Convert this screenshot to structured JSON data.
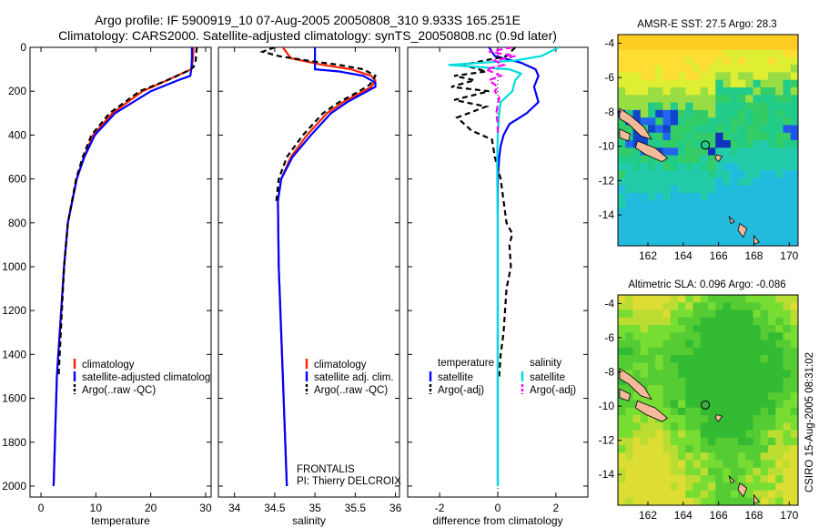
{
  "header": {
    "line1": "Argo profile: IF 5900919_10 07-Aug-2005 20050808_310 9.933S 165.251E",
    "line2": "Climatology: CARS2000. Satellite-adjusted climatology: synTS_20050808.nc (0.9d later)"
  },
  "side_label": "CSIRO 15-Aug-2005 08:31:02",
  "colors": {
    "climatology": "#ff2200",
    "satellite": "#0000ff",
    "argo": "#000000",
    "salinity_satellite": "#00dddd",
    "salinity_argo": "#ff00ff",
    "land": "#f4b89a"
  },
  "chart_data": [
    {
      "type": "line",
      "id": "temperature",
      "xlabel": "temperature",
      "ylabel": "",
      "xlim": [
        -2,
        31
      ],
      "ylim": [
        2050,
        0
      ],
      "xticks": [
        0,
        10,
        20,
        30
      ],
      "yticks": [
        0,
        200,
        400,
        600,
        800,
        1000,
        1200,
        1400,
        1600,
        1800,
        2000
      ],
      "legend": [
        "climatology",
        "satellite-adjusted climatology",
        "Argo(..raw -QC)"
      ],
      "legend_position": "lower-right",
      "series": [
        {
          "name": "climatology",
          "color": "#ff2200",
          "dash": "",
          "depth": [
            0,
            50,
            100,
            110,
            150,
            200,
            300,
            400,
            500,
            600,
            800,
            1000,
            1500,
            2000
          ],
          "value": [
            27.8,
            27.7,
            27.4,
            26.5,
            23,
            18.5,
            13,
            9.5,
            7.8,
            6.5,
            4.9,
            4.2,
            2.9,
            2.3
          ]
        },
        {
          "name": "satellite-adjusted climatology",
          "color": "#0000ff",
          "dash": "",
          "depth": [
            0,
            50,
            100,
            130,
            150,
            200,
            300,
            400,
            500,
            600,
            800,
            1000,
            1500,
            2000
          ],
          "value": [
            27.5,
            27.5,
            27.4,
            27.2,
            25,
            20,
            13.5,
            9.8,
            7.9,
            6.5,
            4.9,
            4.2,
            2.9,
            2.3
          ]
        },
        {
          "name": "Argo(..raw -QC)",
          "color": "#000000",
          "dash": "6,4",
          "depth": [
            0,
            20,
            60,
            90,
            110,
            150,
            200,
            300,
            400,
            500,
            600,
            800,
            1000,
            1200,
            1400,
            1500
          ],
          "value": [
            28.4,
            28.3,
            28.2,
            27.8,
            26.5,
            23,
            18,
            12.5,
            9.2,
            7.6,
            6.4,
            4.9,
            4.2,
            3.8,
            3.4,
            3.2
          ]
        }
      ]
    },
    {
      "type": "line",
      "id": "salinity",
      "xlabel": "salinity",
      "ylabel": "",
      "xlim": [
        33.8,
        36.05
      ],
      "ylim": [
        2050,
        0
      ],
      "xticks": [
        34,
        34.5,
        35,
        35.5,
        36
      ],
      "legend": [
        "climatology",
        "satellite adj. clim.",
        "Argo(..raw -QC)"
      ],
      "legend_position": "lower-right",
      "series": [
        {
          "name": "climatology",
          "color": "#ff2200",
          "dash": "",
          "depth": [
            0,
            50,
            80,
            100,
            130,
            150,
            180,
            200,
            250,
            300,
            400,
            500,
            600,
            700,
            1000,
            1500,
            2000
          ],
          "value": [
            34.6,
            34.7,
            35.1,
            35.45,
            35.7,
            35.75,
            35.7,
            35.6,
            35.35,
            35.15,
            34.9,
            34.7,
            34.58,
            34.54,
            34.55,
            34.6,
            34.65
          ]
        },
        {
          "name": "satellite adj. clim.",
          "color": "#0000ff",
          "dash": "",
          "depth": [
            0,
            100,
            110,
            130,
            160,
            180,
            200,
            250,
            300,
            400,
            500,
            600,
            700,
            1000,
            1500,
            2000
          ],
          "value": [
            35.0,
            35.0,
            35.3,
            35.6,
            35.75,
            35.75,
            35.65,
            35.4,
            35.2,
            34.95,
            34.72,
            34.58,
            34.54,
            34.55,
            34.6,
            34.65
          ]
        },
        {
          "name": "Argo(..raw -QC)",
          "color": "#000000",
          "dash": "6,4",
          "depth": [
            0,
            20,
            40,
            60,
            80,
            100,
            130,
            150,
            170,
            200,
            250,
            300,
            400,
            500,
            600,
            700
          ],
          "value": [
            34.5,
            34.35,
            34.55,
            34.9,
            35.3,
            35.6,
            35.75,
            35.72,
            35.68,
            35.55,
            35.3,
            35.1,
            34.85,
            34.65,
            34.55,
            34.52
          ]
        }
      ]
    },
    {
      "type": "line",
      "id": "difference",
      "xlabel": "difference from climatology",
      "ylabel": "",
      "xlim": [
        -3.1,
        3.1
      ],
      "ylim": [
        2050,
        0
      ],
      "xticks": [
        -2,
        0,
        2
      ],
      "legend_groups": [
        {
          "title": "temperature",
          "items": [
            "satellite",
            "Argo(-adj)"
          ]
        },
        {
          "title": "salinity",
          "items": [
            "satellite",
            "Argo(-adj)"
          ]
        }
      ],
      "series": [
        {
          "name": "temperature satellite",
          "color": "#0000ff",
          "dash": "",
          "depth": [
            0,
            40,
            70,
            100,
            130,
            180,
            250,
            300,
            350,
            400,
            450,
            500,
            600,
            800,
            2000
          ],
          "value": [
            -0.3,
            -0.1,
            0.8,
            1.3,
            1.4,
            1.25,
            1.4,
            1.0,
            0.4,
            0.2,
            0.1,
            0.05,
            0,
            0,
            0
          ]
        },
        {
          "name": "temperature Argo(-adj)",
          "color": "#000000",
          "dash": "6,4",
          "depth": [
            0,
            40,
            80,
            110,
            130,
            150,
            180,
            200,
            240,
            270,
            320,
            380,
            420,
            500,
            600,
            800,
            850,
            900,
            1000,
            1100,
            1200,
            1300,
            1400,
            1500
          ],
          "value": [
            0.6,
            0.3,
            -1.2,
            -0.4,
            -1.5,
            -0.8,
            -1.6,
            -0.3,
            -1.5,
            -0.4,
            -1.4,
            -0.9,
            -0.2,
            -0.1,
            0.1,
            0.3,
            0.5,
            0.4,
            0.45,
            0.3,
            0.25,
            0.2,
            0.1,
            0.05
          ]
        },
        {
          "name": "salinity satellite",
          "color": "#00dddd",
          "dash": "",
          "depth": [
            0,
            40,
            60,
            80,
            100,
            120,
            150,
            200,
            250,
            300,
            400,
            500,
            600,
            800,
            1000,
            2000
          ],
          "value": [
            2.1,
            1.5,
            0.6,
            -1.7,
            0.4,
            0.8,
            0.6,
            0.5,
            0.1,
            0.05,
            0.0,
            -0.02,
            -0.02,
            0,
            0,
            0
          ]
        },
        {
          "name": "salinity Argo(-adj)",
          "color": "#ff00ff",
          "dash": "7,4",
          "depth": [
            0,
            20,
            40,
            60,
            80,
            100,
            130,
            150,
            180,
            200,
            230,
            260,
            300,
            350,
            400
          ],
          "value": [
            0.5,
            -0.3,
            0.6,
            -0.1,
            0.2,
            -0.4,
            0.1,
            -0.3,
            0.0,
            -0.1,
            0.05,
            0.0,
            -0.05,
            0.0,
            0.0
          ]
        }
      ]
    },
    {
      "type": "heatmap",
      "id": "sst_map",
      "title": "AMSR-E SST: 27.5 Argo: 28.3",
      "xlim": [
        160.3,
        170.5
      ],
      "ylim": [
        -15.8,
        -3.5
      ],
      "xticks": [
        162,
        164,
        166,
        168,
        170
      ],
      "yticks": [
        -4,
        -6,
        -8,
        -10,
        -12,
        -14
      ],
      "marker": {
        "lon": 165.251,
        "lat": -9.933
      }
    },
    {
      "type": "heatmap",
      "id": "sla_map",
      "title": "Altimetric SLA: 0.096 Argo: -0.086",
      "xlim": [
        160.3,
        170.5
      ],
      "ylim": [
        -15.8,
        -3.5
      ],
      "xticks": [
        162,
        164,
        166,
        168,
        170
      ],
      "yticks": [
        -4,
        -6,
        -8,
        -10,
        -12,
        -14
      ],
      "marker": {
        "lon": 165.251,
        "lat": -9.933
      }
    }
  ],
  "annotations": {
    "name": "FRONTALIS",
    "pi": "PI: Thierry DELCROIX"
  }
}
